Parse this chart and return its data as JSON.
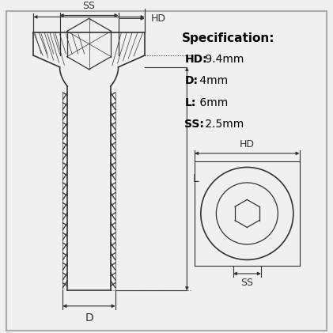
{
  "bg_color": "#f0f0f0",
  "line_color": "#333333",
  "spec_title": "Specification:",
  "spec_lines": [
    {
      "bold": "HD:",
      "normal": " 9.4mm"
    },
    {
      "bold": "D:",
      "normal": " 4mm"
    },
    {
      "bold": "L:",
      "normal": " 6mm"
    },
    {
      "bold": "SS:",
      "normal": " 2.5mm"
    }
  ],
  "dim_labels": {
    "SS": "SS",
    "HD": "HD",
    "D": "D",
    "L": "L"
  }
}
